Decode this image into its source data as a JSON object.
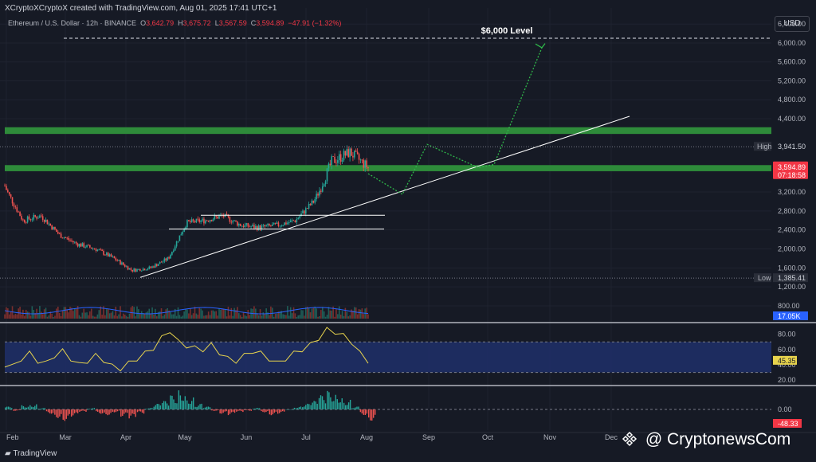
{
  "header": {
    "creator": "XCryptoXCryptoX created with TradingView.com, Aug 01, 2025 17:41 UTC+1",
    "symbol": "Ethereum / U.S. Dollar · 12h · BINANCE",
    "o_label": "O",
    "o_value": "3,642.79",
    "h_label": "H",
    "h_value": "3,675.72",
    "l_label": "L",
    "l_value": "3,567.59",
    "c_label": "C",
    "c_value": "3,594.89",
    "change": "−47.91 (−1.32%)"
  },
  "currency": "USD",
  "colors": {
    "background": "#161a25",
    "up": "#26a69a",
    "down": "#ef5350",
    "zone": "#2e8b3a",
    "rsi": "#e8d44d",
    "volume_ma": "#2962ff",
    "price_tag": "#f23645"
  },
  "chart_data": [
    {
      "type": "candlestick",
      "title": "Ethereum / U.S. Dollar · 12h · BINANCE",
      "x_tick_labels": [
        "Feb",
        "Mar",
        "Apr",
        "May",
        "Jun",
        "Jul",
        "Aug",
        "Sep",
        "Oct",
        "Nov",
        "Dec"
      ],
      "y_tick_labels": [
        "6,400.00",
        "6,000.00",
        "5,600.00",
        "5,200.00",
        "4,800.00",
        "4,400.00",
        "3,200.00",
        "2,800.00",
        "2,400.00",
        "2,000.00",
        "1,600.00",
        "1,200.00",
        "800.00"
      ],
      "ylim": [
        800,
        6600
      ],
      "markers": {
        "high_label": "High",
        "high_value": "3,941.50",
        "low_label": "Low",
        "low_value": "1,385.41",
        "last_price": "3,594.89",
        "countdown": "07:18:58"
      },
      "annotation": "$6,000 Level",
      "level": 6100,
      "zones": [
        [
          4150,
          4260
        ],
        [
          3540,
          3640
        ]
      ],
      "trendline": [
        [
          "Apr",
          1400
        ],
        [
          "Nov",
          4450
        ]
      ],
      "range_lines": [
        2710,
        2420
      ],
      "projected_path": [
        [
          "Aug",
          3500
        ],
        [
          "Aug",
          3150
        ],
        [
          "Aug",
          3200
        ],
        [
          "Sep",
          4000
        ],
        [
          "Sep",
          3600
        ],
        [
          "Oct",
          3650
        ],
        [
          "Nov",
          5900
        ]
      ],
      "close_path": [
        [
          "Feb",
          3300
        ],
        [
          "Feb",
          2600
        ],
        [
          "Feb",
          2700
        ],
        [
          "Mar",
          2300
        ],
        [
          "Mar",
          2100
        ],
        [
          "Mar",
          2000
        ],
        [
          "Apr",
          1800
        ],
        [
          "Apr",
          1550
        ],
        [
          "Apr",
          1600
        ],
        [
          "May",
          1800
        ],
        [
          "May",
          2550
        ],
        [
          "May",
          2600
        ],
        [
          "Jun",
          2700
        ],
        [
          "Jun",
          2500
        ],
        [
          "Jun",
          2450
        ],
        [
          "Jul",
          2500
        ],
        [
          "Jul",
          2600
        ],
        [
          "Jul",
          3000
        ],
        [
          "Jul",
          3700
        ],
        [
          "Jul",
          3850
        ],
        [
          "Aug",
          3600
        ]
      ],
      "volume_label": "17.05K"
    },
    {
      "type": "line",
      "name": "RSI",
      "y_tick_labels": [
        "80.00",
        "60.00",
        "40.00",
        "20.00"
      ],
      "ylim": [
        15,
        90
      ],
      "band": [
        30,
        70
      ],
      "last_value": "45.35",
      "values": [
        40,
        38,
        48,
        55,
        45,
        42,
        52,
        58,
        48,
        40,
        45,
        52,
        46,
        38,
        35,
        42,
        48,
        55,
        62,
        75,
        85,
        70,
        65,
        62,
        60,
        66,
        56,
        48,
        45,
        52,
        58,
        55,
        48,
        42,
        48,
        55,
        60,
        66,
        75,
        86,
        83,
        78,
        70,
        55,
        45
      ]
    },
    {
      "type": "bar",
      "name": "Momentum",
      "y_tick_labels": [
        "0.00"
      ],
      "last_value": "-48.33",
      "values": [
        2,
        -1,
        3,
        4,
        1,
        -3,
        -6,
        -8,
        -5,
        -2,
        1,
        -3,
        -4,
        -2,
        -5,
        -7,
        -3,
        1,
        4,
        6,
        10,
        14,
        9,
        4,
        2,
        -1,
        -3,
        -4,
        -2,
        -1,
        1,
        -2,
        -4,
        -3,
        0,
        2,
        4,
        6,
        10,
        13,
        11,
        7,
        2,
        -4,
        -8
      ]
    }
  ],
  "footer": {
    "brand": "TradingView",
    "watermark": "@ CryptonewsCom"
  }
}
